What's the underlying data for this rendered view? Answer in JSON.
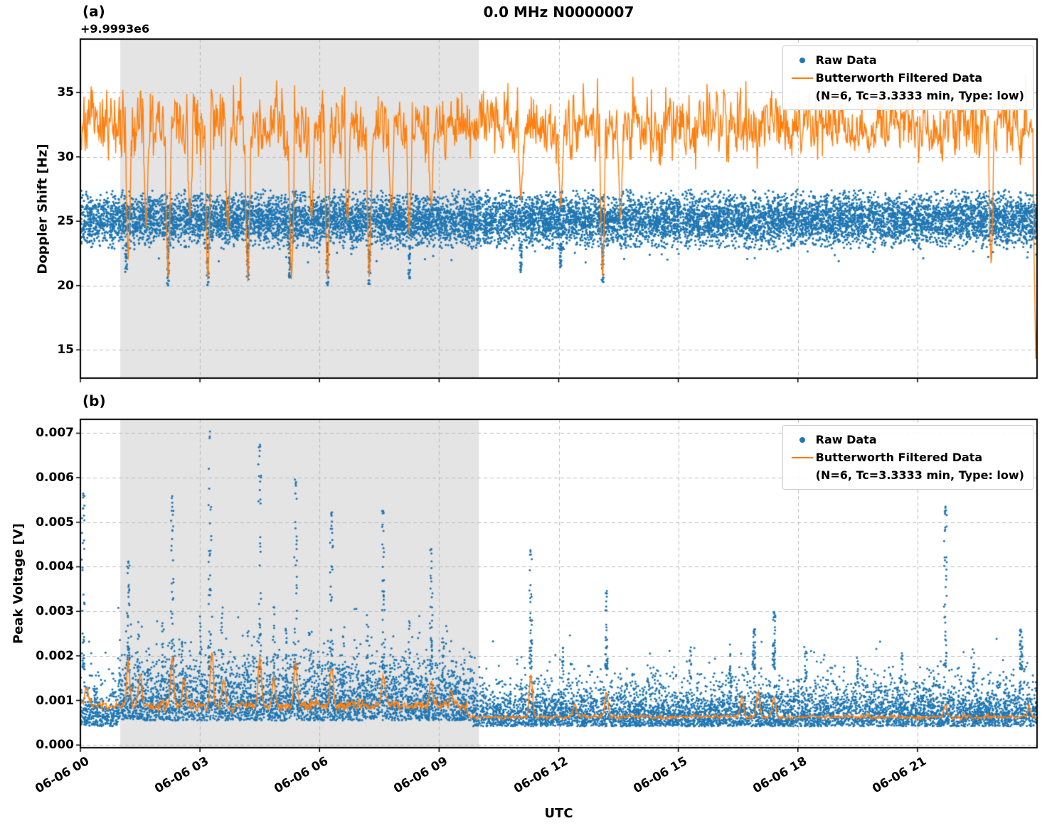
{
  "figure": {
    "title": "0.0 MHz N0000007",
    "panel_a_label": "(a)",
    "panel_b_label": "(b)",
    "xlabel": "UTC",
    "colors": {
      "raw": "#1f77b4",
      "filtered": "#ff7f0e",
      "shade": "#e4e4e4",
      "grid": "#bbbbbb",
      "spine": "#000000",
      "background": "#ffffff",
      "text": "#000000"
    }
  },
  "legend": {
    "raw_label": "Raw Data",
    "filtered_label": "Butterworth Filtered Data",
    "filtered_sublabel": "(N=6, Tc=3.3333 min, Type: low)"
  },
  "chart_data": [
    {
      "type": "scatter",
      "panel": "a",
      "title": "0.0 MHz N0000007",
      "ylabel": "Doppler Shift [Hz]",
      "y_offset_text": "+9.9993e6",
      "xlabel": "UTC",
      "xlim_hours": [
        0,
        24
      ],
      "ylim": [
        12.8,
        39.15
      ],
      "yticks": [
        15,
        20,
        25,
        30,
        35
      ],
      "ytick_labels": [
        "15",
        "20",
        "25",
        "30",
        "35"
      ],
      "xticks_hours": [
        0,
        3,
        6,
        9,
        12,
        15,
        18,
        21
      ],
      "xtick_labels": [
        "06-06 00",
        "06-06 03",
        "06-06 06",
        "06-06 09",
        "06-06 12",
        "06-06 15",
        "06-06 18",
        "06-06 21"
      ],
      "show_xtick_labels": false,
      "shaded_region_hours": [
        1.0,
        10.0
      ],
      "grid": true,
      "legend_position": "upper right",
      "raw": {
        "name": "Raw Data",
        "center": 25.1,
        "sigma": 1.0,
        "band": [
          22.8,
          27.45
        ],
        "n_points": 12000,
        "downward_streaks": [
          [
            1.15,
            20.9
          ],
          [
            2.2,
            20.0
          ],
          [
            3.2,
            20.0
          ],
          [
            4.2,
            20.3
          ],
          [
            5.25,
            20.6
          ],
          [
            6.2,
            20.0
          ],
          [
            7.25,
            20.0
          ],
          [
            8.25,
            20.4
          ],
          [
            11.05,
            20.9
          ],
          [
            12.05,
            21.3
          ],
          [
            13.1,
            20.2
          ]
        ]
      },
      "filtered": {
        "name": "Butterworth Filtered Data (N=6, Tc=3.3333 min, Type: low)",
        "center": 32.4,
        "sigma": 1.7,
        "range": [
          27.8,
          37.9
        ],
        "dips": [
          [
            1.2,
            22.0
          ],
          [
            1.65,
            24.5
          ],
          [
            2.2,
            20.1
          ],
          [
            2.75,
            25.0
          ],
          [
            3.2,
            19.9
          ],
          [
            3.7,
            24.0
          ],
          [
            4.2,
            20.3
          ],
          [
            5.3,
            20.0
          ],
          [
            5.8,
            25.0
          ],
          [
            6.2,
            20.1
          ],
          [
            6.7,
            24.8
          ],
          [
            7.25,
            20.2
          ],
          [
            7.8,
            25.5
          ],
          [
            8.25,
            24.0
          ],
          [
            8.8,
            26.0
          ],
          [
            11.05,
            26.5
          ],
          [
            12.05,
            26.0
          ],
          [
            13.1,
            20.3
          ],
          [
            13.55,
            25.0
          ],
          [
            22.85,
            21.3
          ],
          [
            23.97,
            14.3
          ]
        ]
      }
    },
    {
      "type": "scatter",
      "panel": "b",
      "ylabel": "Peak Voltage [V]",
      "xlabel": "UTC",
      "xlim_hours": [
        0,
        24
      ],
      "ylim": [
        -6e-05,
        0.00731
      ],
      "yticks": [
        0,
        0.001,
        0.002,
        0.003,
        0.004,
        0.005,
        0.006,
        0.007
      ],
      "ytick_labels": [
        "0.000",
        "0.001",
        "0.002",
        "0.003",
        "0.004",
        "0.005",
        "0.006",
        "0.007"
      ],
      "xticks_hours": [
        0,
        3,
        6,
        9,
        12,
        15,
        18,
        21
      ],
      "xtick_labels": [
        "06-06 00",
        "06-06 03",
        "06-06 06",
        "06-06 09",
        "06-06 12",
        "06-06 15",
        "06-06 18",
        "06-06 21"
      ],
      "show_xtick_labels": true,
      "shaded_region_hours": [
        1.0,
        10.0
      ],
      "grid": true,
      "legend_position": "upper right",
      "raw": {
        "name": "Raw Data",
        "n_points": 10000,
        "band_active": {
          "t_start": 0.95,
          "t_end": 9.85,
          "base": 0.00055,
          "spread": 0.00058,
          "tail_frac": 0.25,
          "tail_extra": 0.0013
        },
        "band_quiet": {
          "base": 0.00042,
          "spread": 0.0004,
          "tail_frac": 0.22,
          "tail_extra": 0.0012
        },
        "spike_events": [
          [
            0.07,
            0.0057
          ],
          [
            1.2,
            0.0042
          ],
          [
            2.3,
            0.0056
          ],
          [
            3.25,
            0.0071
          ],
          [
            4.5,
            0.0068
          ],
          [
            5.4,
            0.006
          ],
          [
            6.3,
            0.0053
          ],
          [
            7.6,
            0.0053
          ],
          [
            8.8,
            0.0044
          ],
          [
            11.3,
            0.0044
          ],
          [
            13.2,
            0.0035
          ],
          [
            16.9,
            0.0026
          ],
          [
            17.4,
            0.003
          ],
          [
            21.7,
            0.0054
          ],
          [
            23.6,
            0.0026
          ]
        ],
        "minor_spikes": [
          [
            1.45,
            0.003
          ],
          [
            2.05,
            0.0032
          ],
          [
            2.55,
            0.0028
          ],
          [
            3.0,
            0.0031
          ],
          [
            3.55,
            0.0033
          ],
          [
            4.2,
            0.003
          ],
          [
            4.85,
            0.0032
          ],
          [
            5.15,
            0.0028
          ],
          [
            5.75,
            0.0027
          ],
          [
            6.6,
            0.0029
          ],
          [
            7.2,
            0.003
          ],
          [
            8.25,
            0.0028
          ],
          [
            9.1,
            0.0024
          ],
          [
            12.1,
            0.0022
          ],
          [
            15.3,
            0.0022
          ],
          [
            16.3,
            0.0024
          ],
          [
            18.2,
            0.0022
          ],
          [
            19.5,
            0.002
          ],
          [
            20.6,
            0.0021
          ],
          [
            22.4,
            0.0022
          ]
        ]
      },
      "filtered": {
        "name": "Butterworth Filtered Data (N=6, Tc=3.3333 min, Type: low)",
        "baseline_active": 0.00088,
        "baseline_quiet": 0.00063,
        "active_until": 9.7,
        "noise_active": 9e-05,
        "noise_quiet": 4e-05,
        "bumps": [
          [
            0.15,
            0.0013
          ],
          [
            1.2,
            0.0019
          ],
          [
            1.5,
            0.0016
          ],
          [
            2.3,
            0.002
          ],
          [
            2.6,
            0.0015
          ],
          [
            3.3,
            0.0021
          ],
          [
            3.6,
            0.0015
          ],
          [
            4.5,
            0.002
          ],
          [
            4.85,
            0.0015
          ],
          [
            5.4,
            0.0019
          ],
          [
            6.3,
            0.0017
          ],
          [
            7.6,
            0.0016
          ],
          [
            8.8,
            0.0014
          ],
          [
            9.3,
            0.0012
          ],
          [
            11.3,
            0.0016
          ],
          [
            12.4,
            0.0009
          ],
          [
            13.2,
            0.0012
          ],
          [
            16.6,
            0.0011
          ],
          [
            17.0,
            0.0012
          ],
          [
            17.4,
            0.0011
          ],
          [
            21.7,
            0.0009
          ],
          [
            23.8,
            0.00085
          ]
        ]
      }
    }
  ]
}
